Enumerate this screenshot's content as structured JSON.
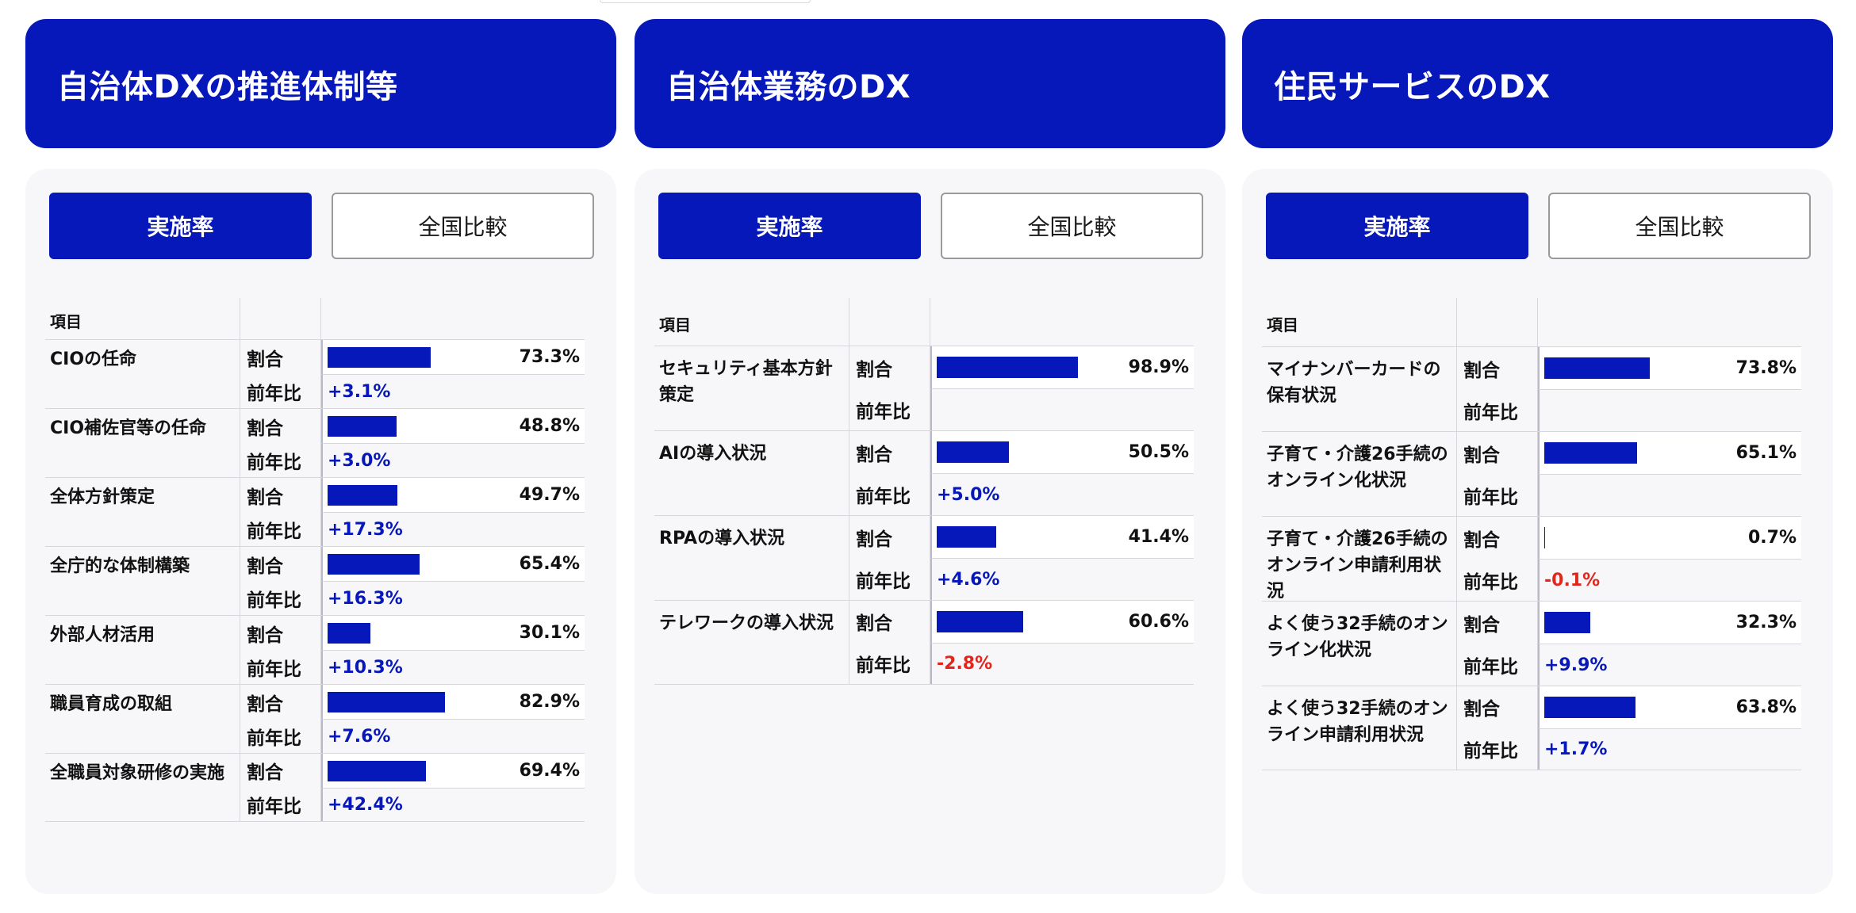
{
  "tabs": {
    "active": "実施率",
    "inactive": "全国比較"
  },
  "table_header": {
    "item": "項目"
  },
  "row_labels": {
    "ratio": "割合",
    "yoy": "前年比"
  },
  "colors": {
    "brand": "#0718bb",
    "positive": "#0718bb",
    "negative": "#e1261c"
  },
  "panels": [
    {
      "title": "自治体DXの推進体制等",
      "rows": [
        {
          "name": "CIOの任命",
          "value": 73.3,
          "value_label": "73.3%",
          "yoy": "+3.1%"
        },
        {
          "name": "CIO補佐官等の任命",
          "value": 48.8,
          "value_label": "48.8%",
          "yoy": "+3.0%"
        },
        {
          "name": "全体方針策定",
          "value": 49.7,
          "value_label": "49.7%",
          "yoy": "+17.3%"
        },
        {
          "name": "全庁的な体制構築",
          "value": 65.4,
          "value_label": "65.4%",
          "yoy": "+16.3%"
        },
        {
          "name": "外部人材活用",
          "value": 30.1,
          "value_label": "30.1%",
          "yoy": "+10.3%"
        },
        {
          "name": "職員育成の取組",
          "value": 82.9,
          "value_label": "82.9%",
          "yoy": "+7.6%"
        },
        {
          "name": "全職員対象研修の実施",
          "value": 69.4,
          "value_label": "69.4%",
          "yoy": "+42.4%"
        }
      ]
    },
    {
      "title": "自治体業務のDX",
      "rows": [
        {
          "name": "セキュリティ基本方針策定",
          "value": 98.9,
          "value_label": "98.9%",
          "yoy": ""
        },
        {
          "name": "AIの導入状況",
          "value": 50.5,
          "value_label": "50.5%",
          "yoy": "+5.0%"
        },
        {
          "name": "RPAの導入状況",
          "value": 41.4,
          "value_label": "41.4%",
          "yoy": "+4.6%"
        },
        {
          "name": "テレワークの導入状況",
          "value": 60.6,
          "value_label": "60.6%",
          "yoy": "-2.8%"
        }
      ]
    },
    {
      "title": "住民サービスのDX",
      "rows": [
        {
          "name": "マイナンバーカードの保有状況",
          "value": 73.8,
          "value_label": "73.8%",
          "yoy": ""
        },
        {
          "name": "子育て・介護26手続のオンライン化状況",
          "value": 65.1,
          "value_label": "65.1%",
          "yoy": ""
        },
        {
          "name": "子育て・介護26手続のオンライン申請利用状況",
          "value": 0.7,
          "value_label": "0.7%",
          "yoy": "-0.1%"
        },
        {
          "name": "よく使う32手続のオンライン化状況",
          "value": 32.3,
          "value_label": "32.3%",
          "yoy": "+9.9%"
        },
        {
          "name": "よく使う32手続のオンライン申請利用状況",
          "value": 63.8,
          "value_label": "63.8%",
          "yoy": "+1.7%"
        }
      ]
    }
  ]
}
